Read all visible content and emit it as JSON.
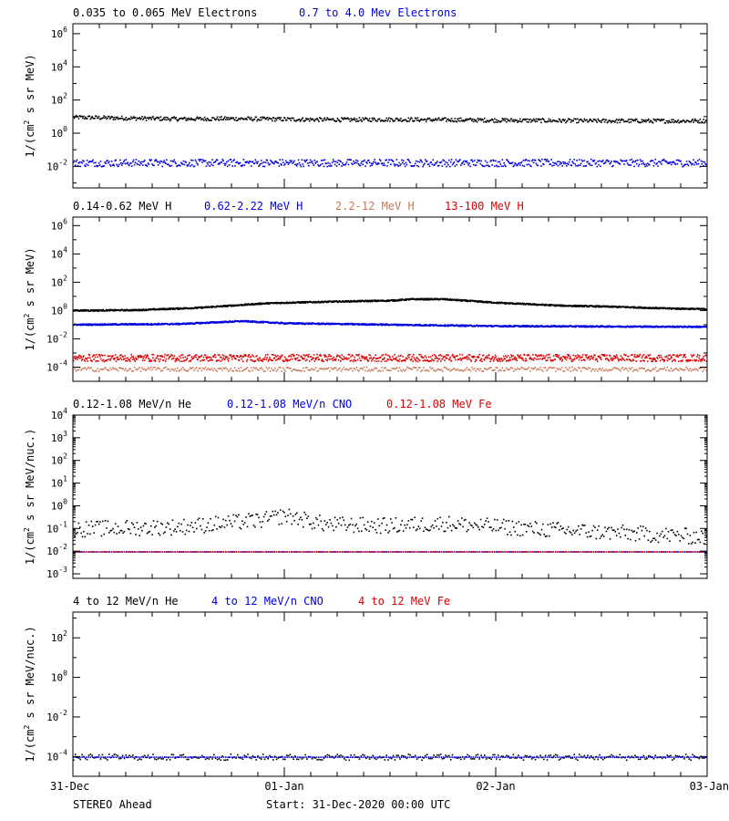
{
  "chart_data": [
    {
      "type": "scatter",
      "ylabel_base": "1/(cm",
      "ylabel_sup": "2",
      "ylabel_rest": " s sr MeV)",
      "ylog": true,
      "ylim_exp": [
        -3.3,
        6.6
      ],
      "yticks": [
        {
          "exp": 6,
          "base": "10",
          "sup": "6"
        },
        {
          "exp": 4,
          "base": "10",
          "sup": "4"
        },
        {
          "exp": 2,
          "base": "10",
          "sup": "2"
        },
        {
          "exp": 0,
          "base": "10",
          "sup": "0"
        },
        {
          "exp": -2,
          "base": "10",
          "sup": "-2"
        }
      ],
      "series": [
        {
          "name": "0.035 to 0.065 MeV Electrons",
          "color": "#000000",
          "points": [
            [
              0,
              1.0
            ],
            [
              0.25,
              0.95
            ],
            [
              0.5,
              0.9
            ],
            [
              0.75,
              0.92
            ],
            [
              1.0,
              0.88
            ],
            [
              1.25,
              0.85
            ],
            [
              1.5,
              0.87
            ],
            [
              1.75,
              0.85
            ],
            [
              2.0,
              0.82
            ],
            [
              2.25,
              0.8
            ],
            [
              2.5,
              0.78
            ],
            [
              2.75,
              0.78
            ],
            [
              3.0,
              0.78
            ]
          ],
          "jitter": 0.12,
          "step": 0.004
        },
        {
          "name": "0.7 to 4.0 Mev Electrons",
          "color": "#0000dd",
          "points": [
            [
              0,
              -1.75
            ],
            [
              3,
              -1.75
            ]
          ],
          "jitter": 0.22,
          "step": 0.004
        }
      ]
    },
    {
      "type": "scatter",
      "ylabel_base": "1/(cm",
      "ylabel_sup": "2",
      "ylabel_rest": " s sr MeV)",
      "ylog": true,
      "ylim_exp": [
        -5,
        6.6
      ],
      "yticks": [
        {
          "exp": 6,
          "base": "10",
          "sup": "6"
        },
        {
          "exp": 4,
          "base": "10",
          "sup": "4"
        },
        {
          "exp": 2,
          "base": "10",
          "sup": "2"
        },
        {
          "exp": 0,
          "base": "10",
          "sup": "0"
        },
        {
          "exp": -2,
          "base": "10",
          "sup": "-2"
        },
        {
          "exp": -4,
          "base": "10",
          "sup": "-4"
        }
      ],
      "series": [
        {
          "name": "0.14-0.62 MeV H",
          "color": "#000000",
          "points": [
            [
              0,
              0.05
            ],
            [
              0.3,
              0.08
            ],
            [
              0.6,
              0.25
            ],
            [
              0.9,
              0.55
            ],
            [
              1.0,
              0.6
            ],
            [
              1.3,
              0.7
            ],
            [
              1.5,
              0.75
            ],
            [
              1.6,
              0.85
            ],
            [
              1.75,
              0.85
            ],
            [
              2.0,
              0.6
            ],
            [
              2.3,
              0.4
            ],
            [
              2.6,
              0.3
            ],
            [
              2.8,
              0.2
            ],
            [
              3.0,
              0.15
            ]
          ],
          "jitter": 0.05,
          "step": 0.002
        },
        {
          "name": "0.62-2.22 MeV H",
          "color": "#0000dd",
          "points": [
            [
              0,
              -0.95
            ],
            [
              0.5,
              -0.9
            ],
            [
              0.8,
              -0.7
            ],
            [
              1.0,
              -0.85
            ],
            [
              1.5,
              -0.95
            ],
            [
              2.0,
              -1.05
            ],
            [
              3.0,
              -1.1
            ]
          ],
          "jitter": 0.05,
          "step": 0.002
        },
        {
          "name": "2.2-12 MeV H",
          "color": "#cc7755",
          "points": [
            [
              0,
              -4.1
            ],
            [
              3,
              -4.1
            ]
          ],
          "jitter": 0.15,
          "step": 0.006
        },
        {
          "name": "13-100 MeV H",
          "color": "#dd0000",
          "points": [
            [
              0,
              -3.3
            ],
            [
              3,
              -3.3
            ]
          ],
          "jitter": 0.25,
          "step": 0.003
        }
      ]
    },
    {
      "type": "scatter",
      "ylabel_base": "1/(cm",
      "ylabel_sup": "2",
      "ylabel_rest": " s sr MeV/nuc.)",
      "ylog": true,
      "ylim_exp": [
        -3.2,
        4
      ],
      "yticks": [
        {
          "exp": 4,
          "base": "10",
          "sup": "4"
        },
        {
          "exp": 3,
          "base": "10",
          "sup": "3"
        },
        {
          "exp": 2,
          "base": "10",
          "sup": "2"
        },
        {
          "exp": 1,
          "base": "10",
          "sup": "1"
        },
        {
          "exp": 0,
          "base": "10",
          "sup": "0"
        },
        {
          "exp": -1,
          "base": "10",
          "sup": "-1"
        },
        {
          "exp": -2,
          "base": "10",
          "sup": "-2"
        },
        {
          "exp": -3,
          "base": "10",
          "sup": "-3"
        }
      ],
      "series": [
        {
          "name": "0.12-1.08 MeV/n He",
          "color": "#000000",
          "points": [
            [
              0,
              -1.0
            ],
            [
              0.5,
              -0.9
            ],
            [
              0.9,
              -0.6
            ],
            [
              1.0,
              -0.4
            ],
            [
              1.2,
              -0.8
            ],
            [
              1.5,
              -0.85
            ],
            [
              1.75,
              -0.75
            ],
            [
              2.2,
              -1.0
            ],
            [
              3.0,
              -1.35
            ]
          ],
          "jitter": 0.35,
          "step": 0.006
        },
        {
          "name": "0.12-1.08 MeV/n CNO",
          "color": "#0000dd",
          "points": [
            [
              0,
              -2.0
            ],
            [
              3,
              -2.0
            ]
          ],
          "jitter": 0.0,
          "step": 0.01
        },
        {
          "name": "0.12-1.08 MeV Fe",
          "color": "#dd0000",
          "points": [
            [
              0,
              -2.0
            ],
            [
              3,
              -2.0
            ]
          ],
          "jitter": 0.0,
          "step": 0.012
        }
      ]
    },
    {
      "type": "scatter",
      "ylabel_base": "1/(cm",
      "ylabel_sup": "2",
      "ylabel_rest": " s sr MeV/nuc.)",
      "ylog": true,
      "ylim_exp": [
        -5,
        3.3
      ],
      "yticks": [
        {
          "exp": 2,
          "base": "10",
          "sup": "2"
        },
        {
          "exp": 0,
          "base": "10",
          "sup": "0"
        },
        {
          "exp": -2,
          "base": "10",
          "sup": "-2"
        },
        {
          "exp": -4,
          "base": "10",
          "sup": "-4"
        }
      ],
      "series": [
        {
          "name": "4 to 12 MeV/n He",
          "color": "#000000",
          "points": [
            [
              0,
              -4.0
            ],
            [
              3,
              -4.0
            ]
          ],
          "jitter": 0.15,
          "step": 0.008
        },
        {
          "name": "4 to 12 MeV/n CNO",
          "color": "#0000dd",
          "points": [
            [
              0,
              -4.0
            ],
            [
              3,
              -4.0
            ]
          ],
          "jitter": 0.0,
          "step": 0.01
        },
        {
          "name": "4 to 12 MeV Fe",
          "color": "#dd0000",
          "points": [],
          "jitter": 0.0,
          "step": 0.01
        }
      ]
    }
  ],
  "xaxis": {
    "range_days": [
      0,
      3
    ],
    "ticks": [
      {
        "day": 0,
        "label": "31-Dec"
      },
      {
        "day": 1,
        "label": "01-Jan"
      },
      {
        "day": 2,
        "label": "02-Jan"
      },
      {
        "day": 3,
        "label": "03-Jan"
      }
    ]
  },
  "footer": {
    "spacecraft": "STEREO Ahead",
    "start": "Start: 31-Dec-2020 00:00 UTC"
  }
}
